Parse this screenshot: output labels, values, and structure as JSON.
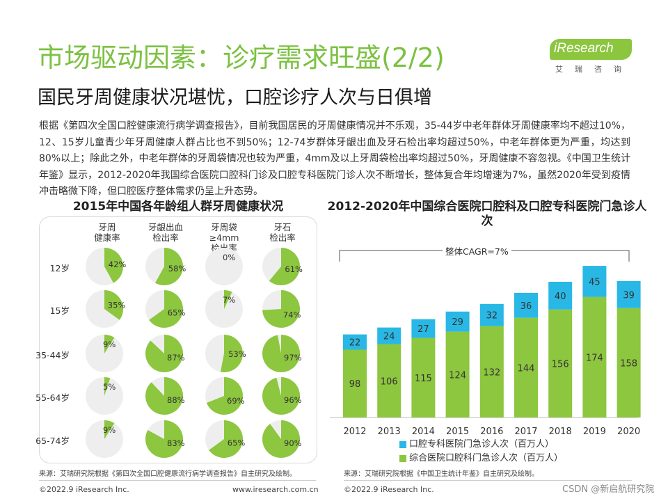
{
  "header": {
    "title": "市场驱动因素：诊疗需求旺盛(2/2)",
    "subtitle": "国民牙周健康状况堪忧，口腔诊疗人次与日俱增",
    "logo_text": "iResearch",
    "logo_cn": "艾瑞咨询"
  },
  "body_text": "根据《第四次全国口腔健康流行病学调查报告》，目前我国居民的牙周健康情况并不乐观，35-44岁中老年群体牙周健康率均不超过10%，12、15岁儿童青少年牙周健康人群占比也不到50%；12-74岁群体牙龈出血及牙石检出率均超过50%，中老年群体更为严重，均达到80%以上；除此之外，中老年群体的牙周袋情况也较为严重，4mm及以上牙周袋检出率均超过50%，牙周健康不容忽视。《中国卫生统计年鉴》显示，2012-2020年我国综合医院口腔科门诊及口腔专科医院门诊人次不断增长，整体复合年均增速为7%，虽然2020年受到疫情冲击略微下降，但口腔医疗整体需求仍呈上升态势。",
  "colors": {
    "green": "#8dc63f",
    "cyan": "#29b8e5",
    "grey_pie": "#eeeeee",
    "title_green": "#7cc142"
  },
  "chart_data": [
    {
      "type": "pie",
      "title": "2015年中国各年龄组人群牙周健康状况",
      "columns": [
        "牙周\n健康率",
        "牙龈出血\n检出率",
        "牙周袋≥4mm\n检出率",
        "牙石\n检出率"
      ],
      "rows": [
        "12岁",
        "15岁",
        "35-44岁",
        "55-64岁",
        "65-74岁"
      ],
      "values": [
        [
          42,
          58,
          0,
          61
        ],
        [
          35,
          65,
          7,
          74
        ],
        [
          9,
          87,
          53,
          97
        ],
        [
          5,
          88,
          69,
          96
        ],
        [
          9,
          83,
          65,
          90
        ]
      ],
      "unit": "%"
    },
    {
      "type": "bar",
      "stacked": true,
      "title": "2012-2020年中国综合医院口腔科及口腔专科医院门急诊人次",
      "categories": [
        "2012",
        "2013",
        "2014",
        "2015",
        "2016",
        "2017",
        "2018",
        "2019",
        "2020"
      ],
      "series": [
        {
          "name": "综合医院口腔科门急诊人次（百万人）",
          "values": [
            98,
            106,
            115,
            124,
            132,
            144,
            156,
            174,
            158
          ]
        },
        {
          "name": "口腔专科医院门急诊人次（百万人）",
          "values": [
            22,
            24,
            27,
            29,
            32,
            36,
            40,
            45,
            39
          ]
        }
      ],
      "annotation": "整体CAGR=7%",
      "ylim": [
        0,
        220
      ]
    }
  ],
  "sources": {
    "left": "来源：艾瑞研究院根据《第四次全国口腔健康流行病学调查报告》自主研究及绘制。",
    "right": "来源：艾瑞研究院根据《中国卫生统计年鉴》自主研究及绘制。"
  },
  "footer": {
    "copyright_left": "©2022.9 iResearch Inc.",
    "url": "www.iresearch.com.cn",
    "copyright_right": "©2022.9 iResearch Inc.",
    "watermark": "CSDN @新启航研究院"
  }
}
